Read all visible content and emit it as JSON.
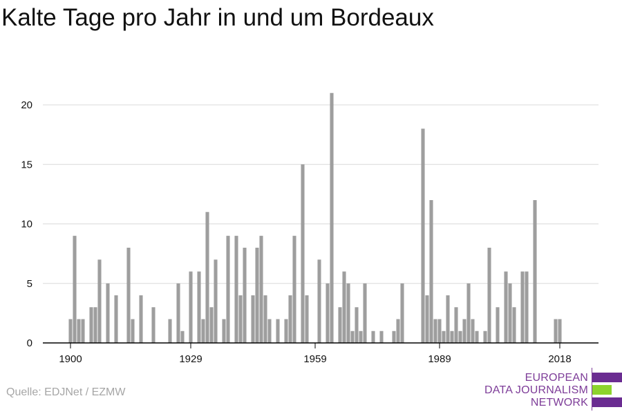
{
  "title": "Kalte Tage pro Jahr in und um Bordeaux",
  "source": "Quelle: EDJNet / EZMW",
  "logo": {
    "lines": [
      "EUROPEAN",
      "DATA JOURNALISM",
      "NETWORK"
    ],
    "purple": "#6a2c91",
    "green": "#8dd32d"
  },
  "colors": {
    "bar": "#9e9e9e",
    "grid": "#d9d9d9",
    "axis": "#000000"
  },
  "chart_data": {
    "type": "bar",
    "xlabel": "",
    "ylabel": "",
    "ylim": [
      0,
      22
    ],
    "yticks": [
      0,
      5,
      10,
      15,
      20
    ],
    "xticks": [
      1900,
      1929,
      1959,
      1989,
      2018
    ],
    "grid": true,
    "x": [
      1900,
      1901,
      1902,
      1903,
      1904,
      1905,
      1906,
      1907,
      1908,
      1909,
      1910,
      1911,
      1912,
      1913,
      1914,
      1915,
      1916,
      1917,
      1918,
      1919,
      1920,
      1921,
      1922,
      1923,
      1924,
      1925,
      1926,
      1927,
      1928,
      1929,
      1930,
      1931,
      1932,
      1933,
      1934,
      1935,
      1936,
      1937,
      1938,
      1939,
      1940,
      1941,
      1942,
      1943,
      1944,
      1945,
      1946,
      1947,
      1948,
      1949,
      1950,
      1951,
      1952,
      1953,
      1954,
      1955,
      1956,
      1957,
      1958,
      1959,
      1960,
      1961,
      1962,
      1963,
      1964,
      1965,
      1966,
      1967,
      1968,
      1969,
      1970,
      1971,
      1972,
      1973,
      1974,
      1975,
      1976,
      1977,
      1978,
      1979,
      1980,
      1981,
      1982,
      1983,
      1984,
      1985,
      1986,
      1987,
      1988,
      1989,
      1990,
      1991,
      1992,
      1993,
      1994,
      1995,
      1996,
      1997,
      1998,
      1999,
      2000,
      2001,
      2002,
      2003,
      2004,
      2005,
      2006,
      2007,
      2008,
      2009,
      2010,
      2011,
      2012,
      2013,
      2014,
      2015,
      2016,
      2017,
      2018
    ],
    "values": [
      2,
      9,
      2,
      2,
      0,
      3,
      3,
      7,
      0,
      5,
      0,
      4,
      0,
      0,
      8,
      2,
      0,
      4,
      0,
      0,
      3,
      0,
      0,
      0,
      2,
      0,
      5,
      1,
      0,
      6,
      0,
      6,
      2,
      11,
      3,
      7,
      0,
      2,
      9,
      0,
      9,
      4,
      8,
      0,
      4,
      8,
      9,
      4,
      2,
      0,
      2,
      0,
      2,
      4,
      9,
      0,
      15,
      4,
      0,
      0,
      7,
      0,
      5,
      21,
      0,
      3,
      6,
      5,
      1,
      3,
      1,
      5,
      0,
      1,
      0,
      1,
      0,
      0,
      1,
      2,
      5,
      0,
      0,
      0,
      0,
      18,
      4,
      12,
      2,
      2,
      1,
      4,
      1,
      3,
      1,
      2,
      5,
      2,
      1,
      0,
      1,
      8,
      0,
      3,
      0,
      6,
      5,
      3,
      0,
      6,
      6,
      0,
      12,
      0,
      0,
      0,
      0,
      2,
      2
    ]
  }
}
